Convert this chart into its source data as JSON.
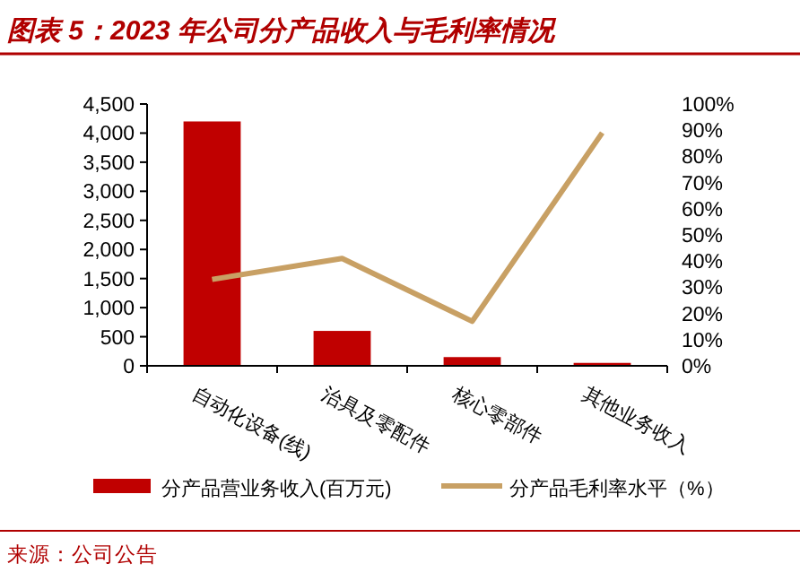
{
  "chart_data": {
    "type": "bar",
    "title": "图表 5：2023 年公司分产品收入与毛利率情况",
    "categories": [
      "自动化设备(线)",
      "治具及零配件",
      "核心零部件",
      "其他业务收入"
    ],
    "series": [
      {
        "name": "分产品营业务收入(百万元)",
        "color": "#c00000",
        "values": [
          4200,
          600,
          150,
          50
        ]
      },
      {
        "name": "分产品毛利率水平（%）",
        "type": "line",
        "axis": "y2",
        "color": "#c8a064",
        "values": [
          33,
          41,
          17,
          89
        ]
      }
    ],
    "ylim": [
      0,
      4500
    ],
    "yticks": [
      {
        "value": 0,
        "label": "0"
      },
      {
        "value": 500,
        "label": "500"
      },
      {
        "value": 1000,
        "label": "1,000"
      },
      {
        "value": 1500,
        "label": "1,500"
      },
      {
        "value": 2000,
        "label": "2,000"
      },
      {
        "value": 2500,
        "label": "2,500"
      },
      {
        "value": 3000,
        "label": "3,000"
      },
      {
        "value": 3500,
        "label": "3,500"
      },
      {
        "value": 4000,
        "label": "4,000"
      },
      {
        "value": 4500,
        "label": "4,500"
      }
    ],
    "y2lim": [
      0,
      100
    ],
    "y2ticks": [
      {
        "value": 0,
        "label": "0%"
      },
      {
        "value": 10,
        "label": "10%"
      },
      {
        "value": 20,
        "label": "20%"
      },
      {
        "value": 30,
        "label": "30%"
      },
      {
        "value": 40,
        "label": "40%"
      },
      {
        "value": 50,
        "label": "50%"
      },
      {
        "value": 60,
        "label": "60%"
      },
      {
        "value": 70,
        "label": "70%"
      },
      {
        "value": 80,
        "label": "80%"
      },
      {
        "value": 90,
        "label": "90%"
      },
      {
        "value": 100,
        "label": "100%"
      }
    ],
    "legend": "bottom",
    "grid": false,
    "annotations": [
      "来源：公司公告"
    ]
  }
}
